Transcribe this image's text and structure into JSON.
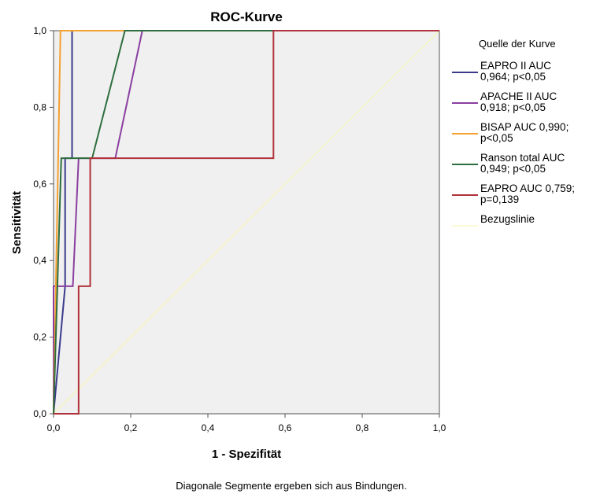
{
  "chart_data": {
    "type": "line",
    "title": "ROC-Kurve",
    "xlabel": "1 - Spezifität",
    "ylabel": "Sensitivität",
    "xlim": [
      0,
      1
    ],
    "ylim": [
      0,
      1
    ],
    "x_ticks": [
      "0,0",
      "0,2",
      "0,4",
      "0,6",
      "0,8",
      "1,0"
    ],
    "y_ticks": [
      "0,0",
      "0,2",
      "0,4",
      "0,6",
      "0,8",
      "1,0"
    ],
    "legend_title": "Quelle der Kurve",
    "legend_position": "right",
    "grid": false,
    "background_color": "#f0f0f0",
    "footnote": "Diagonale Segmente ergeben sich aus Bindungen.",
    "series": [
      {
        "name": "EAPRO II AUC 0,964; p<0,05",
        "label_lines": [
          "EAPRO II AUC",
          "0,964; p<0,05"
        ],
        "color": "#3b3b8c",
        "points": [
          [
            0,
            0
          ],
          [
            0.03,
            0.333
          ],
          [
            0.03,
            0.667
          ],
          [
            0.048,
            0.667
          ],
          [
            0.048,
            1
          ],
          [
            1,
            1
          ]
        ]
      },
      {
        "name": "APACHE II AUC 0,918; p<0,05",
        "label_lines": [
          "APACHE II AUC",
          "0,918; p<0,05"
        ],
        "color": "#8b3fa0",
        "points": [
          [
            0,
            0
          ],
          [
            0,
            0.333
          ],
          [
            0.05,
            0.333
          ],
          [
            0.065,
            0.667
          ],
          [
            0.16,
            0.667
          ],
          [
            0.23,
            1
          ],
          [
            1,
            1
          ]
        ]
      },
      {
        "name": "BISAP AUC 0,990; p<0,05",
        "label_lines": [
          "BISAP AUC 0,990;",
          "p<0,05"
        ],
        "color": "#f5a030",
        "points": [
          [
            0,
            0
          ],
          [
            0.018,
            1
          ],
          [
            1,
            1
          ]
        ]
      },
      {
        "name": "Ranson total AUC 0,949; p<0,05",
        "label_lines": [
          "Ranson total AUC",
          "0,949; p<0,05"
        ],
        "color": "#2e6e3e",
        "points": [
          [
            0,
            0
          ],
          [
            0.02,
            0.667
          ],
          [
            0.1,
            0.667
          ],
          [
            0.185,
            1
          ],
          [
            1,
            1
          ]
        ]
      },
      {
        "name": "EAPRO AUC 0,759; p=0,139",
        "label_lines": [
          "EAPRO AUC 0,759;",
          "p=0,139"
        ],
        "color": "#b0323a",
        "points": [
          [
            0,
            0
          ],
          [
            0.065,
            0
          ],
          [
            0.065,
            0.333
          ],
          [
            0.095,
            0.333
          ],
          [
            0.095,
            0.667
          ],
          [
            0.57,
            0.667
          ],
          [
            0.57,
            1
          ],
          [
            1,
            1
          ]
        ]
      },
      {
        "name": "Bezugslinie",
        "label_lines": [
          "Bezugslinie"
        ],
        "color": "#f7f4a8",
        "points": [
          [
            0,
            0
          ],
          [
            1,
            1
          ]
        ]
      }
    ]
  }
}
